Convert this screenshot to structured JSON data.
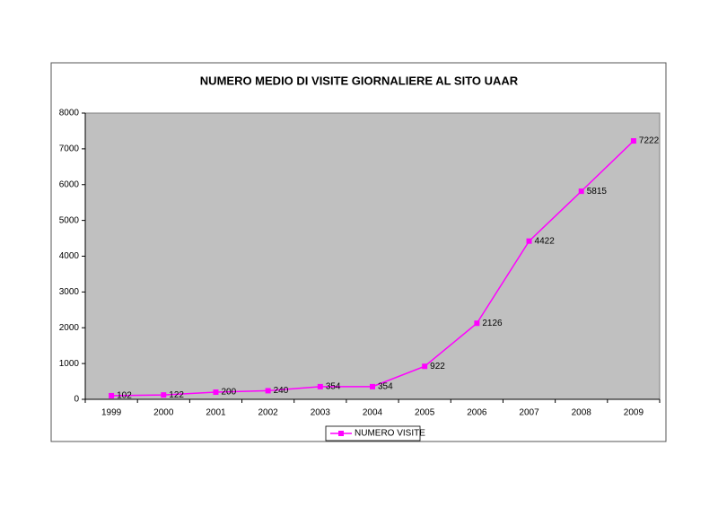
{
  "chart_data": {
    "type": "line",
    "title": "NUMERO MEDIO DI VISITE GIORNALIERE AL SITO UAAR",
    "categories": [
      "1999",
      "2000",
      "2001",
      "2002",
      "2003",
      "2004",
      "2005",
      "2006",
      "2007",
      "2008",
      "2009"
    ],
    "series": [
      {
        "name": "NUMERO VISITE",
        "color": "#ff00ff",
        "values": [
          102,
          122,
          200,
          240,
          354,
          354,
          922,
          2126,
          4422,
          5815,
          7222
        ]
      }
    ],
    "ylim": [
      0,
      8000
    ],
    "yticks": [
      0,
      1000,
      2000,
      3000,
      4000,
      5000,
      6000,
      7000,
      8000
    ],
    "grid": false,
    "legend": "bottom",
    "plot_background": "#c0c0c0"
  }
}
